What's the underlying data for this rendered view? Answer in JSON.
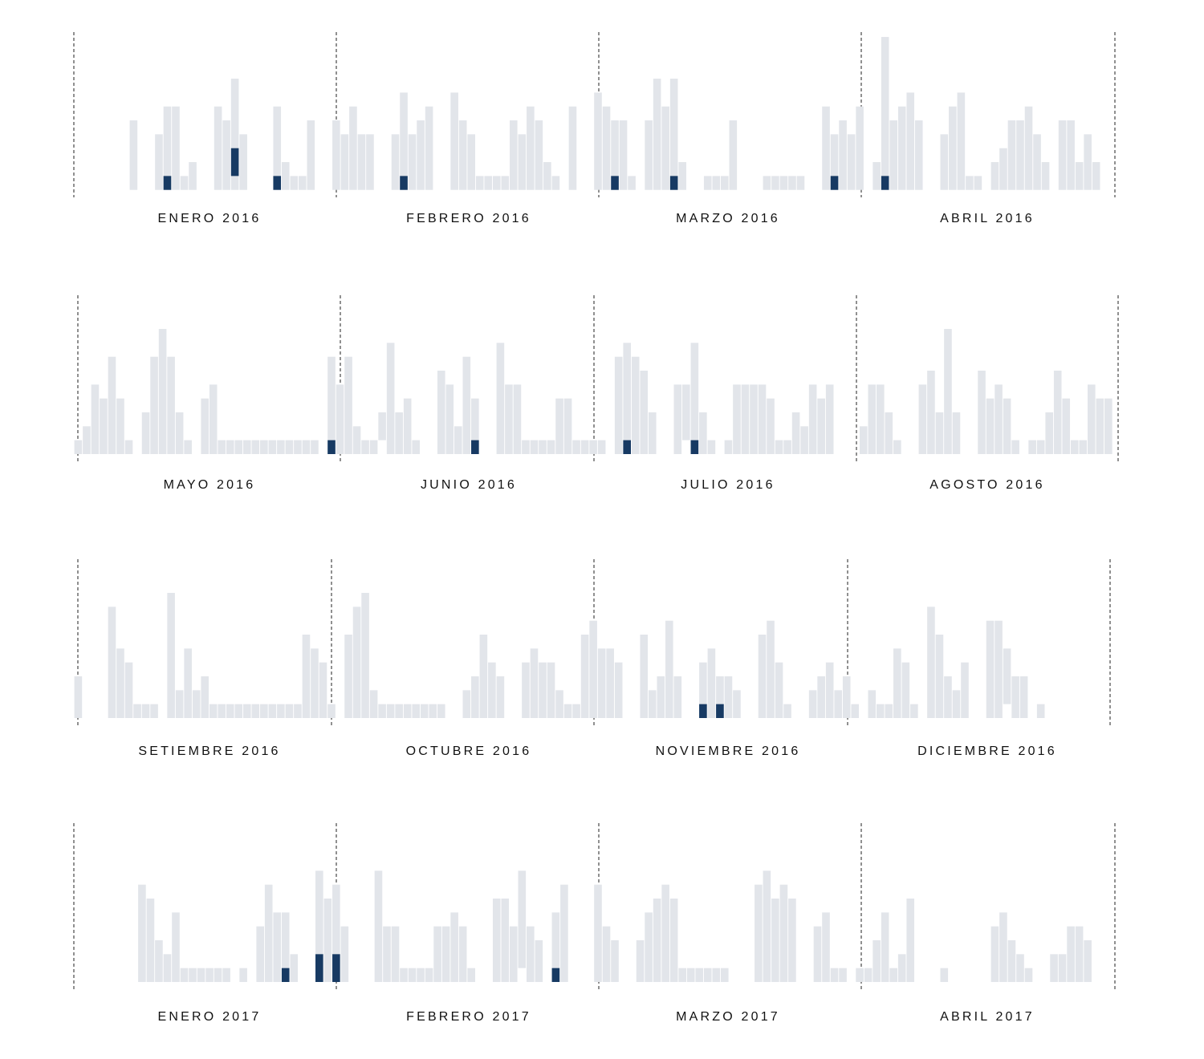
{
  "chart_data": {
    "type": "bar",
    "title": "",
    "xlabel": "",
    "ylabel": "",
    "grid": false,
    "colors": {
      "base": "#e2e5ea",
      "highlight": "#173a63",
      "separator": "#222222"
    },
    "note": "Daily bars per month; values in count units; [lo,hi] = bar segment not starting at zero; highlighted = [day index, lo, hi]",
    "rows": [
      {
        "months": [
          "ENERO 2016",
          "FEBRERO 2016",
          "MARZO 2016",
          "ABRIL 2016"
        ],
        "values": [
          5,
          0,
          0,
          4,
          6,
          6,
          1,
          2,
          0,
          0,
          6,
          5,
          8,
          4,
          0,
          0,
          0,
          6,
          2,
          1,
          1,
          5,
          0,
          0,
          5,
          4,
          6,
          4,
          4,
          0,
          0,
          4,
          7,
          4,
          5,
          6,
          0,
          0,
          7,
          5,
          4,
          1,
          1,
          1,
          1,
          5,
          4,
          6,
          5,
          2,
          1,
          0,
          6,
          0,
          0,
          7,
          6,
          5,
          5,
          1,
          0,
          5,
          8,
          6,
          8,
          2,
          0,
          0,
          1,
          1,
          1,
          5,
          0,
          0,
          0,
          1,
          1,
          1,
          1,
          1,
          0,
          0,
          6,
          4,
          5,
          4,
          6,
          0,
          2,
          11,
          5,
          6,
          7,
          5,
          0,
          0,
          4,
          6,
          7,
          1,
          1,
          0,
          2,
          3,
          5,
          5,
          6,
          4,
          2,
          0,
          5,
          5,
          2,
          4,
          2
        ],
        "highlighted": [
          [
            4,
            0,
            1
          ],
          [
            12,
            1,
            3
          ],
          [
            17,
            0,
            1
          ],
          [
            32,
            0,
            1
          ],
          [
            57,
            0,
            1
          ],
          [
            64,
            0,
            1
          ],
          [
            83,
            0,
            1
          ],
          [
            89,
            0,
            1
          ]
        ]
      },
      {
        "months": [
          "MAYO 2016",
          "JUNIO 2016",
          "JULIO 2016",
          "AGOSTO 2016"
        ],
        "values": [
          1,
          2,
          5,
          4,
          7,
          4,
          1,
          0,
          3,
          7,
          9,
          7,
          3,
          1,
          0,
          4,
          5,
          1,
          1,
          1,
          1,
          1,
          1,
          1,
          1,
          1,
          1,
          1,
          1,
          0,
          7,
          5,
          7,
          2,
          1,
          1,
          [
            1,
            3
          ],
          8,
          3,
          4,
          1,
          0,
          0,
          6,
          5,
          2,
          7,
          4,
          0,
          0,
          8,
          5,
          5,
          1,
          1,
          1,
          1,
          4,
          4,
          1,
          1,
          1,
          1,
          0,
          7,
          8,
          7,
          6,
          3,
          0,
          0,
          5,
          [
            1,
            5
          ],
          8,
          3,
          1,
          0,
          1,
          5,
          5,
          5,
          5,
          4,
          1,
          1,
          3,
          2,
          5,
          4,
          5,
          0,
          0,
          0,
          2,
          5,
          5,
          3,
          1,
          0,
          0,
          5,
          6,
          3,
          9,
          3,
          0,
          0,
          6,
          4,
          5,
          4,
          1,
          0,
          1,
          1,
          3,
          6,
          4,
          1,
          1,
          5,
          4,
          4
        ],
        "highlighted": [
          [
            30,
            0,
            1
          ],
          [
            47,
            0,
            1
          ],
          [
            65,
            0,
            1
          ],
          [
            73,
            0,
            1
          ]
        ]
      },
      {
        "months": [
          "SETIEMBRE 2016",
          "OCTUBRE 2016",
          "NOVIEMBRE 2016",
          "DICIEMBRE 2016"
        ],
        "values": [
          3,
          0,
          0,
          0,
          8,
          5,
          4,
          1,
          1,
          1,
          0,
          9,
          2,
          5,
          2,
          3,
          1,
          1,
          1,
          1,
          1,
          1,
          1,
          1,
          1,
          1,
          1,
          6,
          5,
          4,
          1,
          0,
          6,
          8,
          9,
          2,
          1,
          1,
          1,
          1,
          1,
          1,
          1,
          1,
          0,
          0,
          2,
          3,
          6,
          4,
          3,
          0,
          0,
          4,
          5,
          4,
          4,
          2,
          1,
          1,
          6,
          7,
          5,
          5,
          4,
          0,
          0,
          6,
          2,
          3,
          7,
          3,
          0,
          0,
          4,
          5,
          3,
          3,
          2,
          0,
          0,
          6,
          7,
          4,
          1,
          0,
          0,
          2,
          3,
          4,
          2,
          3,
          1,
          0,
          2,
          1,
          1,
          5,
          4,
          1,
          0,
          8,
          6,
          3,
          2,
          4,
          0,
          0,
          7,
          7,
          [
            1,
            5
          ],
          3,
          3,
          0,
          1
        ],
        "highlighted": [
          [
            74,
            0,
            1
          ],
          [
            76,
            0,
            1
          ]
        ]
      },
      {
        "months": [
          "ENERO 2017",
          "FEBRERO 2017",
          "MARZO 2017",
          "ABRIL 2017"
        ],
        "values": [
          7,
          6,
          3,
          2,
          5,
          1,
          1,
          1,
          1,
          1,
          1,
          0,
          1,
          0,
          4,
          7,
          5,
          5,
          2,
          0,
          0,
          8,
          6,
          7,
          4,
          0,
          0,
          0,
          8,
          4,
          4,
          1,
          1,
          1,
          1,
          4,
          4,
          5,
          4,
          1,
          0,
          0,
          6,
          6,
          4,
          [
            1,
            8
          ],
          4,
          3,
          0,
          5,
          7,
          0,
          0,
          0,
          7,
          4,
          3,
          0,
          0,
          3,
          5,
          6,
          7,
          6,
          1,
          1,
          1,
          1,
          1,
          1,
          0,
          0,
          0,
          7,
          8,
          6,
          7,
          6,
          0,
          0,
          4,
          5,
          1,
          1,
          0,
          1,
          1,
          3,
          5,
          1,
          2,
          6,
          0,
          0,
          0,
          1,
          0,
          0,
          0,
          0,
          0,
          4,
          5,
          3,
          2,
          1,
          0,
          0,
          2,
          2,
          4,
          4,
          3
        ],
        "highlighted": [
          [
            17,
            0,
            1
          ],
          [
            21,
            0,
            2
          ],
          [
            23,
            0,
            2
          ],
          [
            49,
            0,
            1
          ]
        ]
      }
    ]
  }
}
